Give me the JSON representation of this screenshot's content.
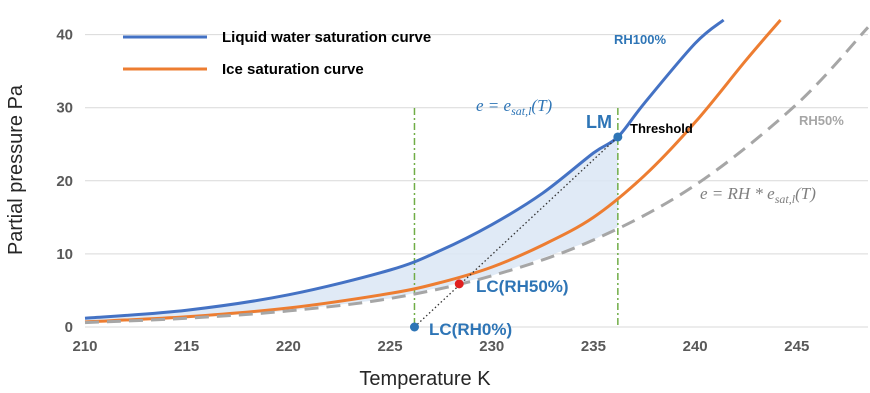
{
  "chart_data": {
    "type": "line",
    "xlabel": "Temperature K",
    "ylabel": "Partial pressure Pa",
    "xlim": [
      210,
      248.5
    ],
    "ylim": [
      0,
      42
    ],
    "x_ticks": [
      "210",
      "215",
      "220",
      "225",
      "230",
      "235",
      "240",
      "245"
    ],
    "y_ticks": [
      "0",
      "10",
      "20",
      "30",
      "40"
    ],
    "grid": "horizontal",
    "legend_position": "top-left",
    "series": [
      {
        "name": "Liquid water saturation curve",
        "color": "#4472c4",
        "style": "solid",
        "points": [
          [
            210,
            1.2
          ],
          [
            215,
            2.3
          ],
          [
            220,
            4.4
          ],
          [
            225,
            7.8
          ],
          [
            227.5,
            10.5
          ],
          [
            230,
            14.0
          ],
          [
            232.5,
            18.3
          ],
          [
            235,
            23.8
          ],
          [
            236.2,
            26.0
          ],
          [
            237.5,
            30.6
          ],
          [
            240,
            38.8
          ],
          [
            241.4,
            42.0
          ]
        ]
      },
      {
        "name": "Ice saturation curve",
        "color": "#ed7d31",
        "style": "solid",
        "points": [
          [
            210,
            0.7
          ],
          [
            215,
            1.4
          ],
          [
            220,
            2.6
          ],
          [
            225,
            4.6
          ],
          [
            227.5,
            6.1
          ],
          [
            230,
            8.2
          ],
          [
            232.5,
            11.2
          ],
          [
            235,
            15.0
          ],
          [
            237.5,
            20.7
          ],
          [
            240,
            28.0
          ],
          [
            242.5,
            36.5
          ],
          [
            244.2,
            42.0
          ]
        ]
      },
      {
        "name": "RH50%",
        "color": "#a6a6a6",
        "style": "dashed",
        "points": [
          [
            210,
            0.6
          ],
          [
            215,
            1.2
          ],
          [
            220,
            2.2
          ],
          [
            225,
            3.9
          ],
          [
            230,
            7.0
          ],
          [
            235,
            11.9
          ],
          [
            240,
            19.4
          ],
          [
            245,
            30.5
          ],
          [
            248.5,
            41.0
          ]
        ]
      }
    ],
    "annotations": {
      "rh100": "RH100%",
      "rh50": "RH50%",
      "threshold": "Threshold",
      "lm": "LM",
      "lc50": "LC(RH50%)",
      "lc0": "LC(RH0%)",
      "eq1_lhs": "e = e",
      "eq1_sub": "sat,l",
      "eq1_rhs": "(T)",
      "eq2_lhs": "e = RH * e",
      "eq2_sub": "sat,l",
      "eq2_rhs": "(T)"
    },
    "points": {
      "lm": [
        236.2,
        26.0
      ],
      "lc50": [
        228.4,
        5.9
      ],
      "lc0": [
        226.2,
        0
      ]
    },
    "vertical_lines": [
      226.2,
      236.2
    ],
    "tangent_line": [
      [
        226.2,
        0
      ],
      [
        236.2,
        26.0
      ]
    ],
    "shaded_region": "between liquid water saturation curve and RH50% curve, below 236.2 K"
  }
}
